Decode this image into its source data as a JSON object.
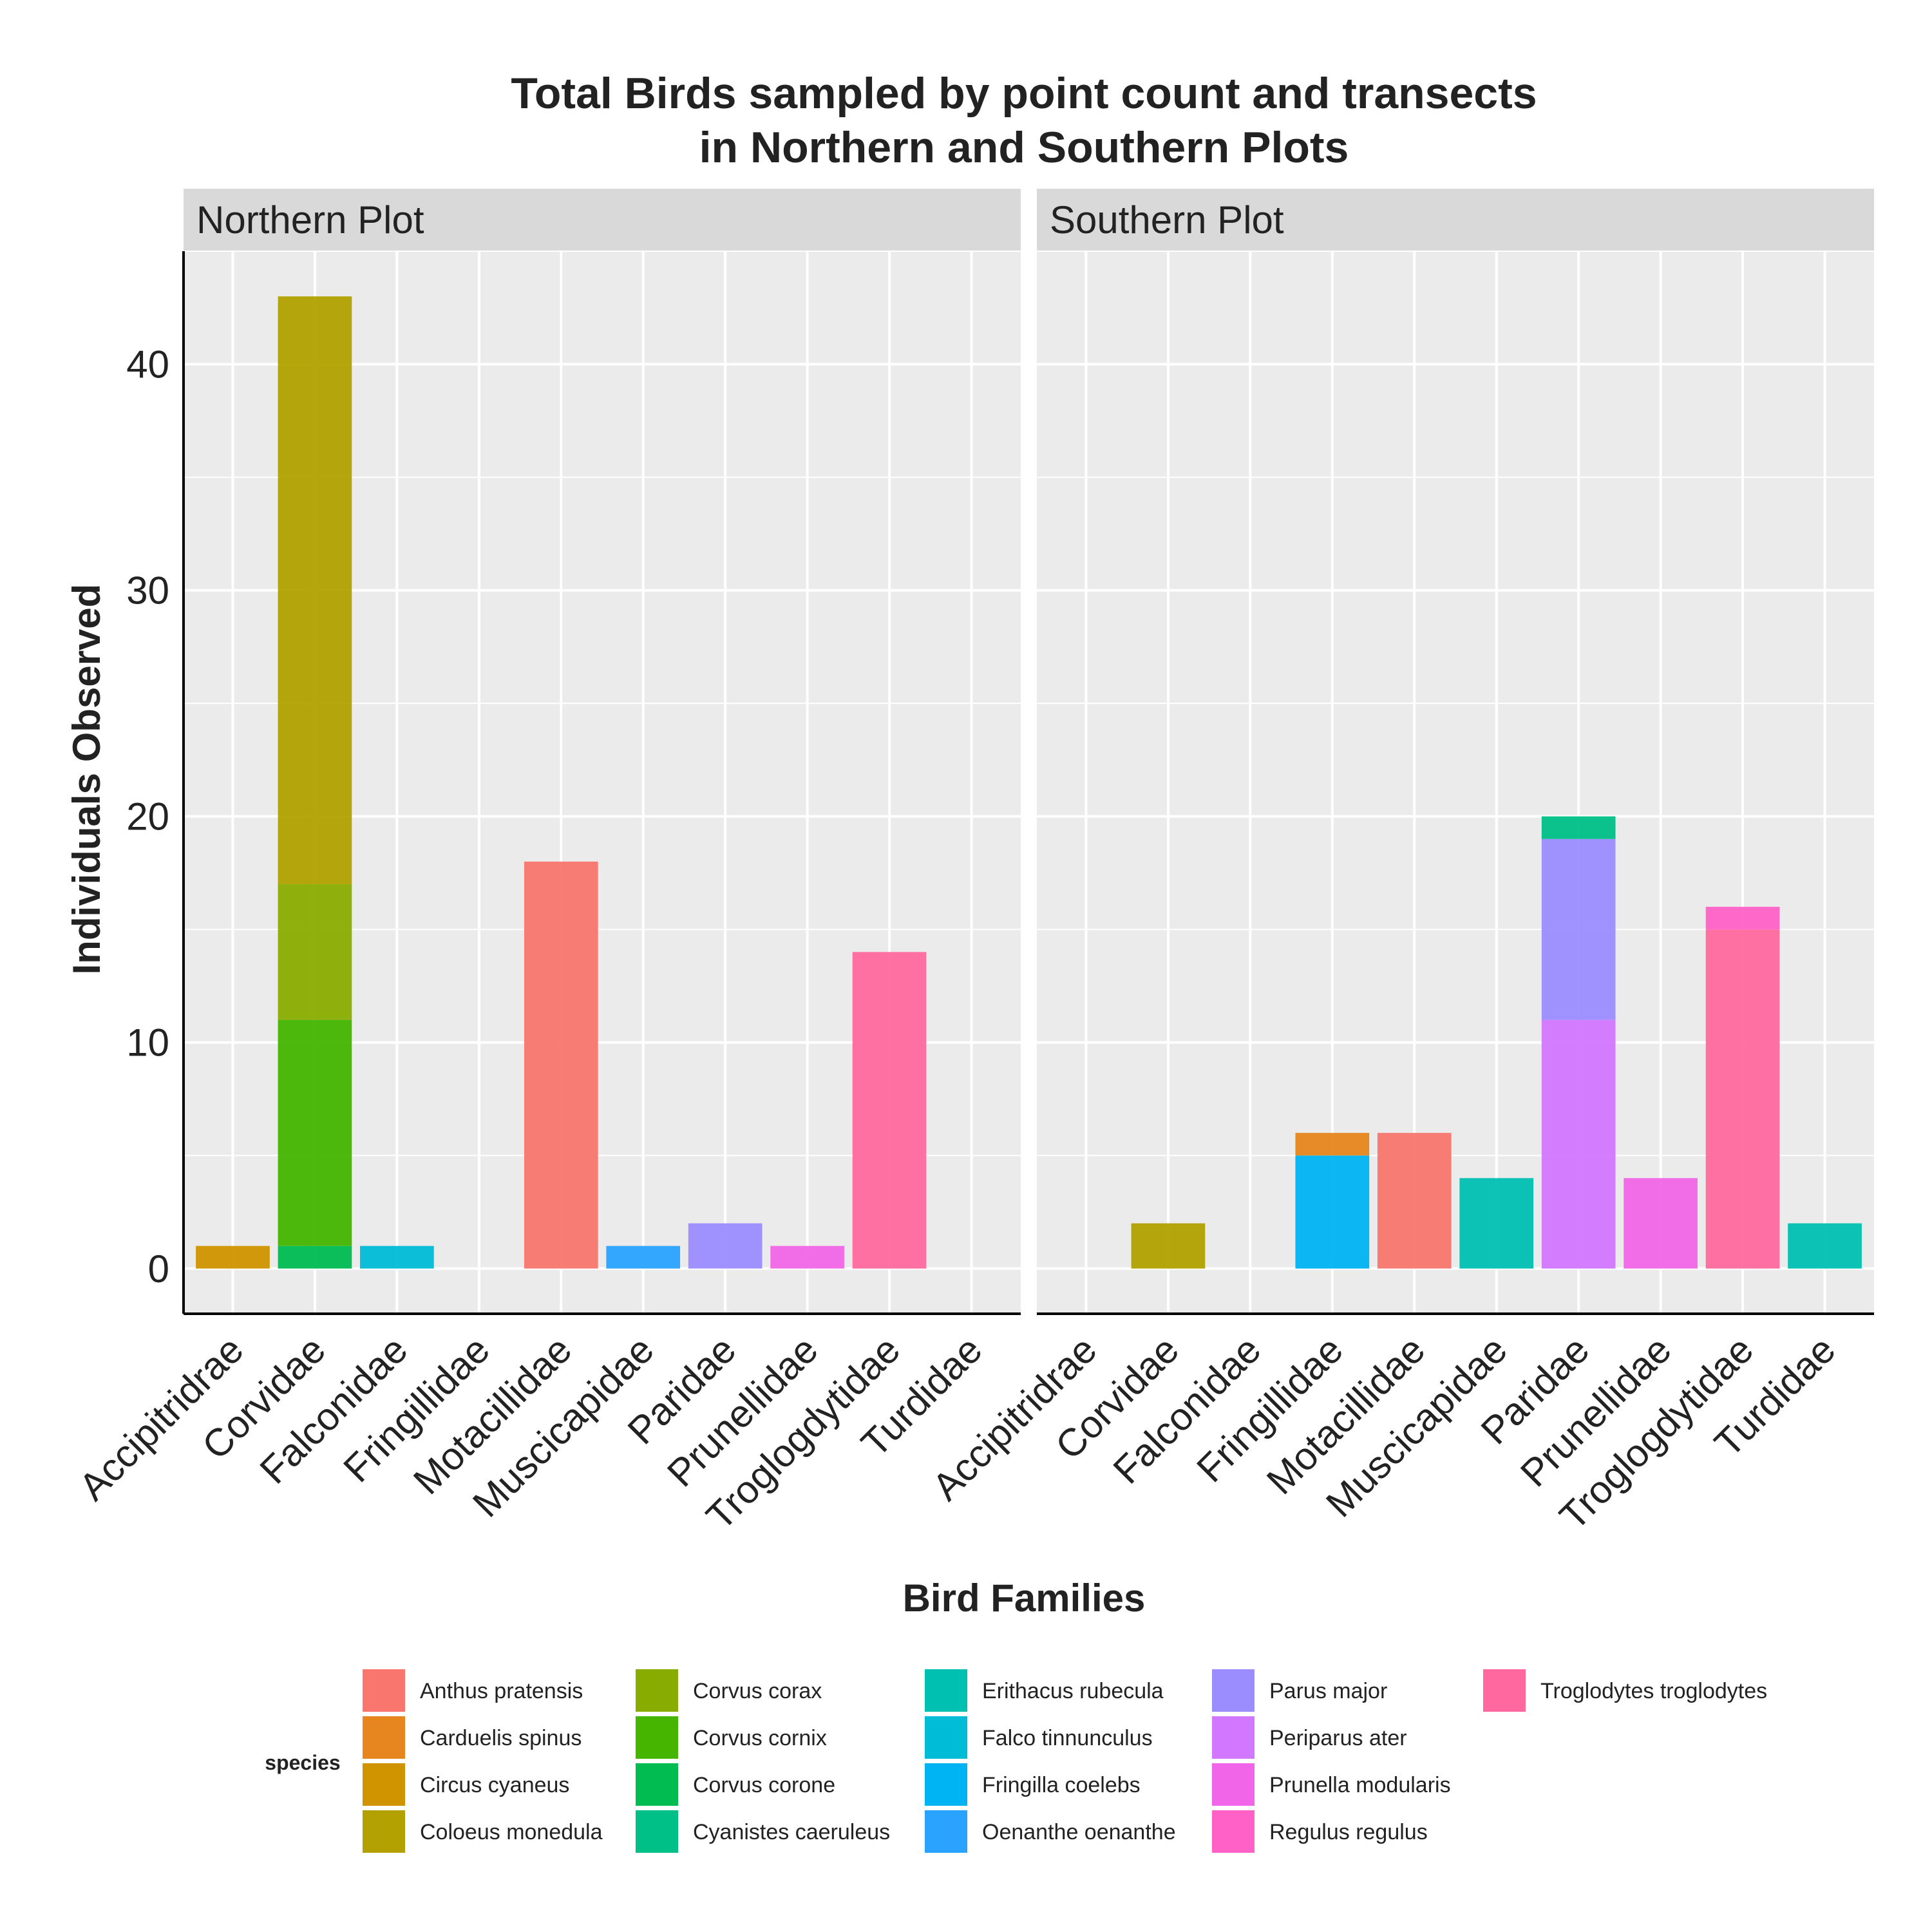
{
  "chart_data": {
    "type": "bar",
    "title": "Total Birds sampled by point count and transects\nin Northern and Southern Plots",
    "xlabel": "Bird Families",
    "ylabel": "Individuals Observed",
    "ylim": [
      -2,
      45
    ],
    "yticks": [
      0,
      10,
      20,
      30,
      40
    ],
    "grid": true,
    "legend_position": "bottom",
    "legend_title": "species",
    "categories": [
      "Accipitridrae",
      "Corvidae",
      "Falconidae",
      "Fringillidae",
      "Motacillidae",
      "Muscicapidae",
      "Paridae",
      "Prunellidae",
      "Troglogdytidae",
      "Turdidae"
    ],
    "species": [
      {
        "name": "Anthus pratensis",
        "color": "#F8766D"
      },
      {
        "name": "Carduelis spinus",
        "color": "#E7851E"
      },
      {
        "name": "Circus cyaneus",
        "color": "#D09400"
      },
      {
        "name": "Coloeus monedula",
        "color": "#B2A100"
      },
      {
        "name": "Corvus corax",
        "color": "#89AC00"
      },
      {
        "name": "Corvus cornix",
        "color": "#45B500"
      },
      {
        "name": "Corvus corone",
        "color": "#00BC51"
      },
      {
        "name": "Cyanistes caeruleus",
        "color": "#00C087"
      },
      {
        "name": "Erithacus rubecula",
        "color": "#00C0B2"
      },
      {
        "name": "Falco tinnunculus",
        "color": "#00BCD6"
      },
      {
        "name": "Fringilla coelebs",
        "color": "#00B3F2"
      },
      {
        "name": "Oenanthe oenanthe",
        "color": "#29A3FF"
      },
      {
        "name": "Parus major",
        "color": "#9C8DFF"
      },
      {
        "name": "Periparus ater",
        "color": "#D277FF"
      },
      {
        "name": "Prunella modularis",
        "color": "#F166E8"
      },
      {
        "name": "Regulus regulus",
        "color": "#FF61C7"
      },
      {
        "name": "Troglodytes troglodytes",
        "color": "#FF689E"
      }
    ],
    "panels": [
      {
        "name": "Northern Plot",
        "stacks": [
          {
            "category": "Accipitridrae",
            "segments": [
              {
                "species": "Circus cyaneus",
                "value": 1
              }
            ]
          },
          {
            "category": "Corvidae",
            "segments": [
              {
                "species": "Corvus corone",
                "value": 1
              },
              {
                "species": "Corvus cornix",
                "value": 10
              },
              {
                "species": "Corvus corax",
                "value": 6
              },
              {
                "species": "Coloeus monedula",
                "value": 26
              }
            ]
          },
          {
            "category": "Falconidae",
            "segments": [
              {
                "species": "Falco tinnunculus",
                "value": 1
              }
            ]
          },
          {
            "category": "Fringillidae",
            "segments": []
          },
          {
            "category": "Motacillidae",
            "segments": [
              {
                "species": "Anthus pratensis",
                "value": 18
              }
            ]
          },
          {
            "category": "Muscicapidae",
            "segments": [
              {
                "species": "Oenanthe oenanthe",
                "value": 1
              }
            ]
          },
          {
            "category": "Paridae",
            "segments": [
              {
                "species": "Parus major",
                "value": 2
              }
            ]
          },
          {
            "category": "Prunellidae",
            "segments": [
              {
                "species": "Prunella modularis",
                "value": 1
              }
            ]
          },
          {
            "category": "Troglogdytidae",
            "segments": [
              {
                "species": "Troglodytes troglodytes",
                "value": 14
              }
            ]
          },
          {
            "category": "Turdidae",
            "segments": []
          }
        ]
      },
      {
        "name": "Southern Plot",
        "stacks": [
          {
            "category": "Accipitridrae",
            "segments": []
          },
          {
            "category": "Corvidae",
            "segments": [
              {
                "species": "Coloeus monedula",
                "value": 2
              }
            ]
          },
          {
            "category": "Falconidae",
            "segments": []
          },
          {
            "category": "Fringillidae",
            "segments": [
              {
                "species": "Fringilla coelebs",
                "value": 5
              },
              {
                "species": "Carduelis spinus",
                "value": 1
              }
            ]
          },
          {
            "category": "Motacillidae",
            "segments": [
              {
                "species": "Anthus pratensis",
                "value": 6
              }
            ]
          },
          {
            "category": "Muscicapidae",
            "segments": [
              {
                "species": "Erithacus rubecula",
                "value": 4
              }
            ]
          },
          {
            "category": "Paridae",
            "segments": [
              {
                "species": "Periparus ater",
                "value": 11
              },
              {
                "species": "Parus major",
                "value": 8
              },
              {
                "species": "Cyanistes caeruleus",
                "value": 1
              }
            ]
          },
          {
            "category": "Prunellidae",
            "segments": [
              {
                "species": "Prunella modularis",
                "value": 4
              }
            ]
          },
          {
            "category": "Troglogdytidae",
            "segments": [
              {
                "species": "Troglodytes troglodytes",
                "value": 15
              },
              {
                "species": "Regulus regulus",
                "value": 1
              }
            ]
          },
          {
            "category": "Turdidae",
            "segments": [
              {
                "species": "Erithacus rubecula",
                "value": 2
              }
            ]
          }
        ]
      }
    ]
  }
}
